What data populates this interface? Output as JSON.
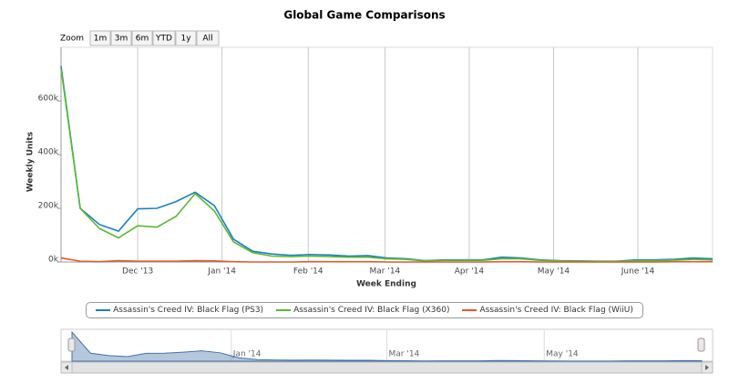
{
  "range_selector": {
    "label": "Zoom",
    "buttons": [
      "1m",
      "3m",
      "6m",
      "YTD",
      "1y",
      "All"
    ]
  },
  "chart_data": {
    "type": "line",
    "title": "Global Game Comparisons",
    "x_label": "Week Ending",
    "y_label": "Weekly Units",
    "x": [
      0,
      1,
      2,
      3,
      4,
      5,
      6,
      7,
      8,
      9,
      10,
      11,
      12,
      13,
      14,
      15,
      16,
      17,
      18,
      19,
      20,
      21,
      22,
      23,
      24,
      25,
      26,
      27,
      28,
      29,
      30,
      31,
      32,
      33,
      34
    ],
    "xlim": [
      0,
      34
    ],
    "xticks": [
      {
        "value": 4.0,
        "label": "Dec '13"
      },
      {
        "value": 8.4,
        "label": "Jan '14"
      },
      {
        "value": 12.9,
        "label": "Feb '14"
      },
      {
        "value": 16.9,
        "label": "Mar '14"
      },
      {
        "value": 21.3,
        "label": "Apr '14"
      },
      {
        "value": 25.7,
        "label": "May '14"
      },
      {
        "value": 30.1,
        "label": "June '14"
      }
    ],
    "ylim": [
      0,
      800000
    ],
    "yticks": [
      {
        "value": 0,
        "label": "0k"
      },
      {
        "value": 200000,
        "label": "200k"
      },
      {
        "value": 400000,
        "label": "400k"
      },
      {
        "value": 600000,
        "label": "600k"
      }
    ],
    "grid": "x",
    "series": [
      {
        "name": "Assassin's Creed IV: Black Flag (PS3)",
        "color": "#1b7fc4",
        "values": [
          730000,
          200000,
          140000,
          115000,
          198000,
          200000,
          225000,
          260000,
          210000,
          85000,
          40000,
          30000,
          25000,
          28000,
          26000,
          22000,
          24000,
          15000,
          12000,
          5000,
          8000,
          8000,
          8000,
          18000,
          15000,
          8000,
          5000,
          4000,
          3000,
          3000,
          8000,
          8000,
          10000,
          15000,
          12000
        ]
      },
      {
        "name": "Assassin's Creed IV: Black Flag (X360)",
        "color": "#58b930",
        "values": [
          720000,
          200000,
          125000,
          90000,
          135000,
          130000,
          170000,
          255000,
          190000,
          75000,
          35000,
          22000,
          20000,
          22000,
          20000,
          18000,
          18000,
          12000,
          10000,
          4000,
          6000,
          6000,
          6000,
          12000,
          12000,
          6000,
          4000,
          3000,
          2000,
          2000,
          5000,
          5000,
          7000,
          10000,
          8000
        ]
      },
      {
        "name": "Assassin's Creed IV: Black Flag (WiiU)",
        "color": "#e0582a",
        "values": [
          15000,
          3000,
          1000,
          5000,
          3000,
          3000,
          3000,
          5000,
          4000,
          1000,
          0,
          0,
          0,
          1000,
          1000,
          1000,
          1000,
          0,
          0,
          0,
          0,
          0,
          0,
          1000,
          1000,
          0,
          0,
          0,
          0,
          0,
          0,
          0,
          1000,
          1000,
          1000
        ]
      }
    ],
    "navigator": {
      "xticks": [
        {
          "value": 8.6,
          "label": "Jan '14"
        },
        {
          "value": 17.0,
          "label": "Mar '14"
        },
        {
          "value": 25.5,
          "label": "May '14"
        }
      ]
    }
  }
}
